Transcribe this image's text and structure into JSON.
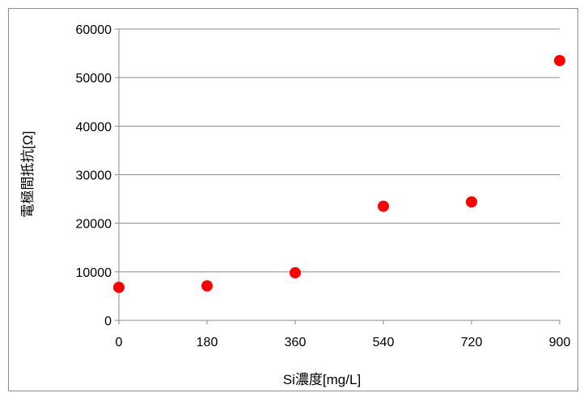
{
  "chart_data": {
    "type": "scatter",
    "title": "",
    "xlabel": "Si濃度[mg/L]",
    "ylabel": "電極間抵抗[Ω]",
    "xlim": [
      0,
      900
    ],
    "ylim": [
      0,
      60000
    ],
    "x_ticks": [
      "0",
      "180",
      "360",
      "540",
      "720",
      "900"
    ],
    "y_ticks": [
      "0",
      "10000",
      "20000",
      "30000",
      "40000",
      "50000",
      "60000"
    ],
    "grid": "horizontal",
    "legend": "none",
    "marker_color": "#ff0000",
    "series": [
      {
        "points": [
          {
            "x": 0,
            "y": 6800
          },
          {
            "x": 180,
            "y": 7100
          },
          {
            "x": 360,
            "y": 9800
          },
          {
            "x": 540,
            "y": 23500
          },
          {
            "x": 720,
            "y": 24400
          },
          {
            "x": 900,
            "y": 53500
          }
        ]
      }
    ]
  }
}
